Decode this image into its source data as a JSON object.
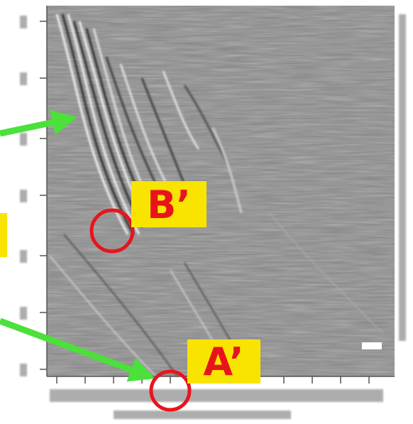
{
  "labels": {
    "b_prime": "B’",
    "a_prime": "A’"
  }
}
